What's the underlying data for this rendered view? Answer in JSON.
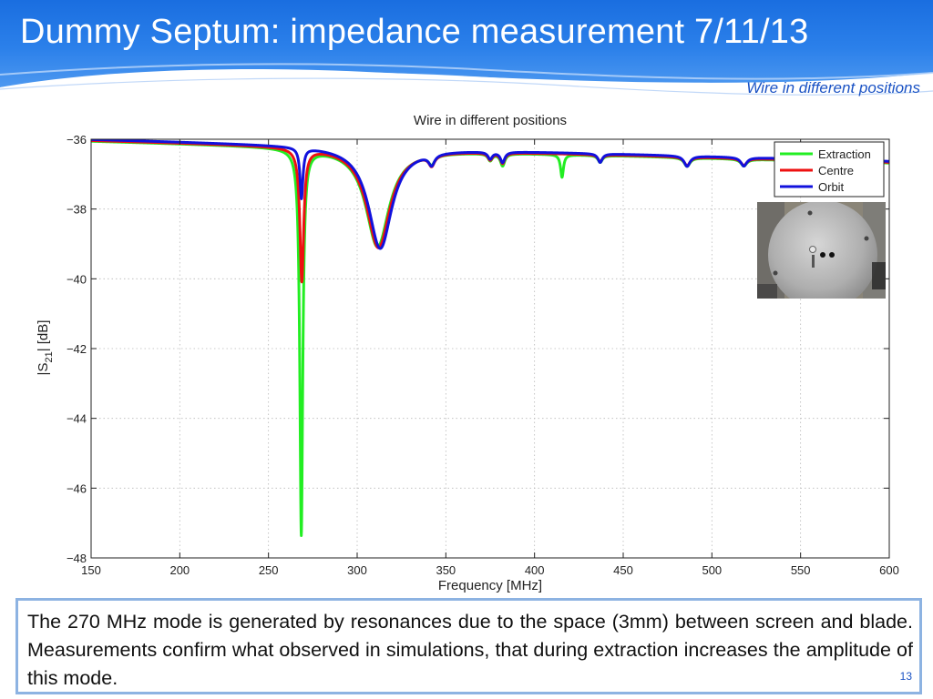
{
  "slide": {
    "title": "Dummy Septum: impedance measurement 7/11/13",
    "subtitle": "Wire in different positions",
    "page_number": "13",
    "caption": "The 270 MHz mode is generated by resonances due to the space (3mm) between screen and blade. Measurements confirm what observed in simulations, that during extraction increases the amplitude of this mode."
  },
  "colors": {
    "header_blue": "#1766d6",
    "header_light": "#6fa8ee",
    "subtitle": "#1a52c4",
    "caption_border": "#8db3e2"
  },
  "inset_image": {
    "name": "wire-position-photo"
  },
  "chart_data": {
    "type": "line",
    "title": "Wire in different positions",
    "xlabel": "Frequency [MHz]",
    "ylabel": "|S21| [dB]",
    "xlim": [
      150,
      600
    ],
    "ylim": [
      -48,
      -36
    ],
    "xticks": [
      "150",
      "200",
      "250",
      "300",
      "350",
      "400",
      "450",
      "500",
      "550",
      "600"
    ],
    "yticks": [
      "-36",
      "-38",
      "-40",
      "-42",
      "-44",
      "-46",
      "-48"
    ],
    "grid": true,
    "legend_position": "top-right",
    "series": [
      {
        "name": "Extraction",
        "color": "#22ee22",
        "baseline": -36.05,
        "baseline_slope": -0.0014,
        "x_start": 150,
        "x_end": 600,
        "resonances": [
          {
            "freq": 268.5,
            "depth": -47.3,
            "width": 1.0,
            "base": -36.25
          },
          {
            "freq": 311.5,
            "depth": -39.1,
            "width": 8.0,
            "base": -36.3
          },
          {
            "freq": 342,
            "depth": -36.6,
            "width": 2.0,
            "base": -36.35
          },
          {
            "freq": 375,
            "depth": -36.55,
            "width": 1.5,
            "base": -36.35
          },
          {
            "freq": 382,
            "depth": -36.7,
            "width": 1.5,
            "base": -36.35
          },
          {
            "freq": 415.5,
            "depth": -37.0,
            "width": 1.0,
            "base": -36.35
          },
          {
            "freq": 437,
            "depth": -36.6,
            "width": 1.5,
            "base": -36.4
          },
          {
            "freq": 486,
            "depth": -36.7,
            "width": 2.0,
            "base": -36.45
          },
          {
            "freq": 518,
            "depth": -36.7,
            "width": 2.0,
            "base": -36.5
          }
        ]
      },
      {
        "name": "Centre",
        "color": "#ee1111",
        "baseline": -36.03,
        "baseline_slope": -0.0014,
        "x_start": 150,
        "x_end": 600,
        "resonances": [
          {
            "freq": 268.8,
            "depth": -40.0,
            "width": 1.3,
            "base": -36.2
          },
          {
            "freq": 312,
            "depth": -39.1,
            "width": 8.0,
            "base": -36.25
          },
          {
            "freq": 342,
            "depth": -36.65,
            "width": 2.0,
            "base": -36.35
          },
          {
            "freq": 375,
            "depth": -36.55,
            "width": 1.5,
            "base": -36.35
          },
          {
            "freq": 382,
            "depth": -36.65,
            "width": 1.5,
            "base": -36.35
          },
          {
            "freq": 437,
            "depth": -36.6,
            "width": 1.5,
            "base": -36.4
          },
          {
            "freq": 486,
            "depth": -36.7,
            "width": 2.0,
            "base": -36.45
          },
          {
            "freq": 518,
            "depth": -36.7,
            "width": 2.0,
            "base": -36.5
          }
        ]
      },
      {
        "name": "Orbit",
        "color": "#1111dd",
        "baseline": -36.0,
        "baseline_slope": -0.0014,
        "x_start": 150,
        "x_end": 600,
        "resonances": [
          {
            "freq": 268.6,
            "depth": -37.6,
            "width": 1.0,
            "base": -36.15
          },
          {
            "freq": 313,
            "depth": -39.1,
            "width": 8.0,
            "base": -36.2
          },
          {
            "freq": 342,
            "depth": -36.6,
            "width": 2.0,
            "base": -36.3
          },
          {
            "freq": 375,
            "depth": -36.5,
            "width": 1.5,
            "base": -36.3
          },
          {
            "freq": 382,
            "depth": -36.6,
            "width": 1.5,
            "base": -36.3
          },
          {
            "freq": 437,
            "depth": -36.6,
            "width": 1.5,
            "base": -36.35
          },
          {
            "freq": 486,
            "depth": -36.75,
            "width": 2.0,
            "base": -36.45
          },
          {
            "freq": 518,
            "depth": -36.75,
            "width": 2.0,
            "base": -36.5
          }
        ]
      }
    ]
  }
}
